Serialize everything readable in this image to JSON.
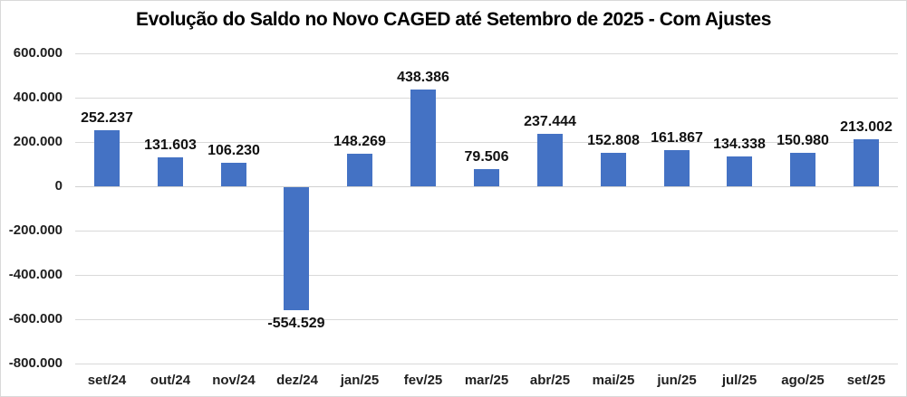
{
  "window": {
    "background": "#FFFFFF",
    "border_color": "#D9D9D9"
  },
  "chart_data": {
    "type": "bar",
    "title": "Evolução do Saldo no Novo CAGED até Setembro de 2025 - Com Ajustes",
    "categories": [
      "set/24",
      "out/24",
      "nov/24",
      "dez/24",
      "jan/25",
      "fev/25",
      "mar/25",
      "abr/25",
      "mai/25",
      "jun/25",
      "jul/25",
      "ago/25",
      "set/25"
    ],
    "values": [
      252237,
      131603,
      106230,
      -554529,
      148269,
      438386,
      79506,
      237444,
      152808,
      161867,
      134338,
      150980,
      213002
    ],
    "value_labels": [
      "252.237",
      "131.603",
      "106.230",
      "-554.529",
      "148.269",
      "438.386",
      "79.506",
      "237.444",
      "152.808",
      "161.867",
      "134.338",
      "150.980",
      "213.002"
    ],
    "xlabel": "",
    "ylabel": "",
    "ylim": [
      -800000,
      600000
    ],
    "ytick_step": 200000,
    "ytick_values": [
      600000,
      400000,
      200000,
      0,
      -200000,
      -400000,
      -600000,
      -800000
    ],
    "ytick_labels": [
      "600.000",
      "400.000",
      "200.000",
      "0",
      "-200.000",
      "-400.000",
      "-600.000",
      "-800.000"
    ],
    "grid": true,
    "legend": false,
    "bar_color": "#4472C4",
    "gridline_color": "#D9D9D9",
    "zero_line_color": "#D0D0D0",
    "text_color": "#1F1F1F"
  }
}
